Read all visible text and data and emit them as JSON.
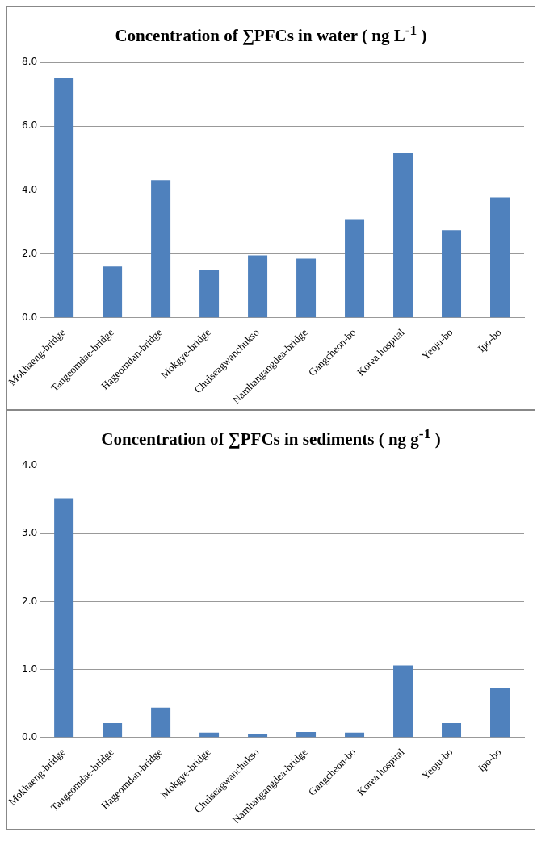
{
  "chart_data": [
    {
      "type": "bar",
      "title": "Concentration of ∑PFCs in water ( ng L$^{-1}$ )",
      "categories": [
        "Mokhaeng-bridge",
        "Tangeomdae-bridge",
        "Hageomdan-bridge",
        "Mokgye-bridge",
        "Chulseagwanchukso",
        "Namhangangdea-bridge",
        "Gangcheon-bo",
        "Korea hospital",
        "Yeoju-bo",
        "Ipo-bo"
      ],
      "values": [
        7.5,
        1.6,
        4.31,
        1.5,
        1.95,
        1.85,
        3.09,
        5.17,
        2.74,
        3.77
      ],
      "color": "#4f81bd",
      "ylim": [
        0,
        8
      ],
      "yticks": [
        {
          "value": 0,
          "label": "0.0"
        },
        {
          "value": 2,
          "label": "2.0"
        },
        {
          "value": 4,
          "label": "4.0"
        },
        {
          "value": 6,
          "label": "6.0"
        },
        {
          "value": 8,
          "label": "8.0"
        }
      ],
      "grid": "y"
    },
    {
      "type": "bar",
      "title": "Concentration of ∑PFCs in sediments ( ng g$^{-1}$ )",
      "categories": [
        "Mokhaeng-bridge",
        "Tangeomdae-bridge",
        "Hageomdan-bridge",
        "Mokgye-bridge",
        "Chulseagwanchukso",
        "Namhangangdea-bridge",
        "Gangcheon-bo",
        "Korea hospital",
        "Yeoju-bo",
        "Ipo-bo"
      ],
      "values": [
        3.52,
        0.21,
        0.44,
        0.07,
        0.05,
        0.08,
        0.07,
        1.06,
        0.21,
        0.72
      ],
      "color": "#4f81bd",
      "ylim": [
        0,
        4
      ],
      "yticks": [
        {
          "value": 0,
          "label": "0.0"
        },
        {
          "value": 1,
          "label": "1.0"
        },
        {
          "value": 2,
          "label": "2.0"
        },
        {
          "value": 3,
          "label": "3.0"
        },
        {
          "value": 4,
          "label": "4.0"
        }
      ],
      "grid": "y"
    }
  ]
}
